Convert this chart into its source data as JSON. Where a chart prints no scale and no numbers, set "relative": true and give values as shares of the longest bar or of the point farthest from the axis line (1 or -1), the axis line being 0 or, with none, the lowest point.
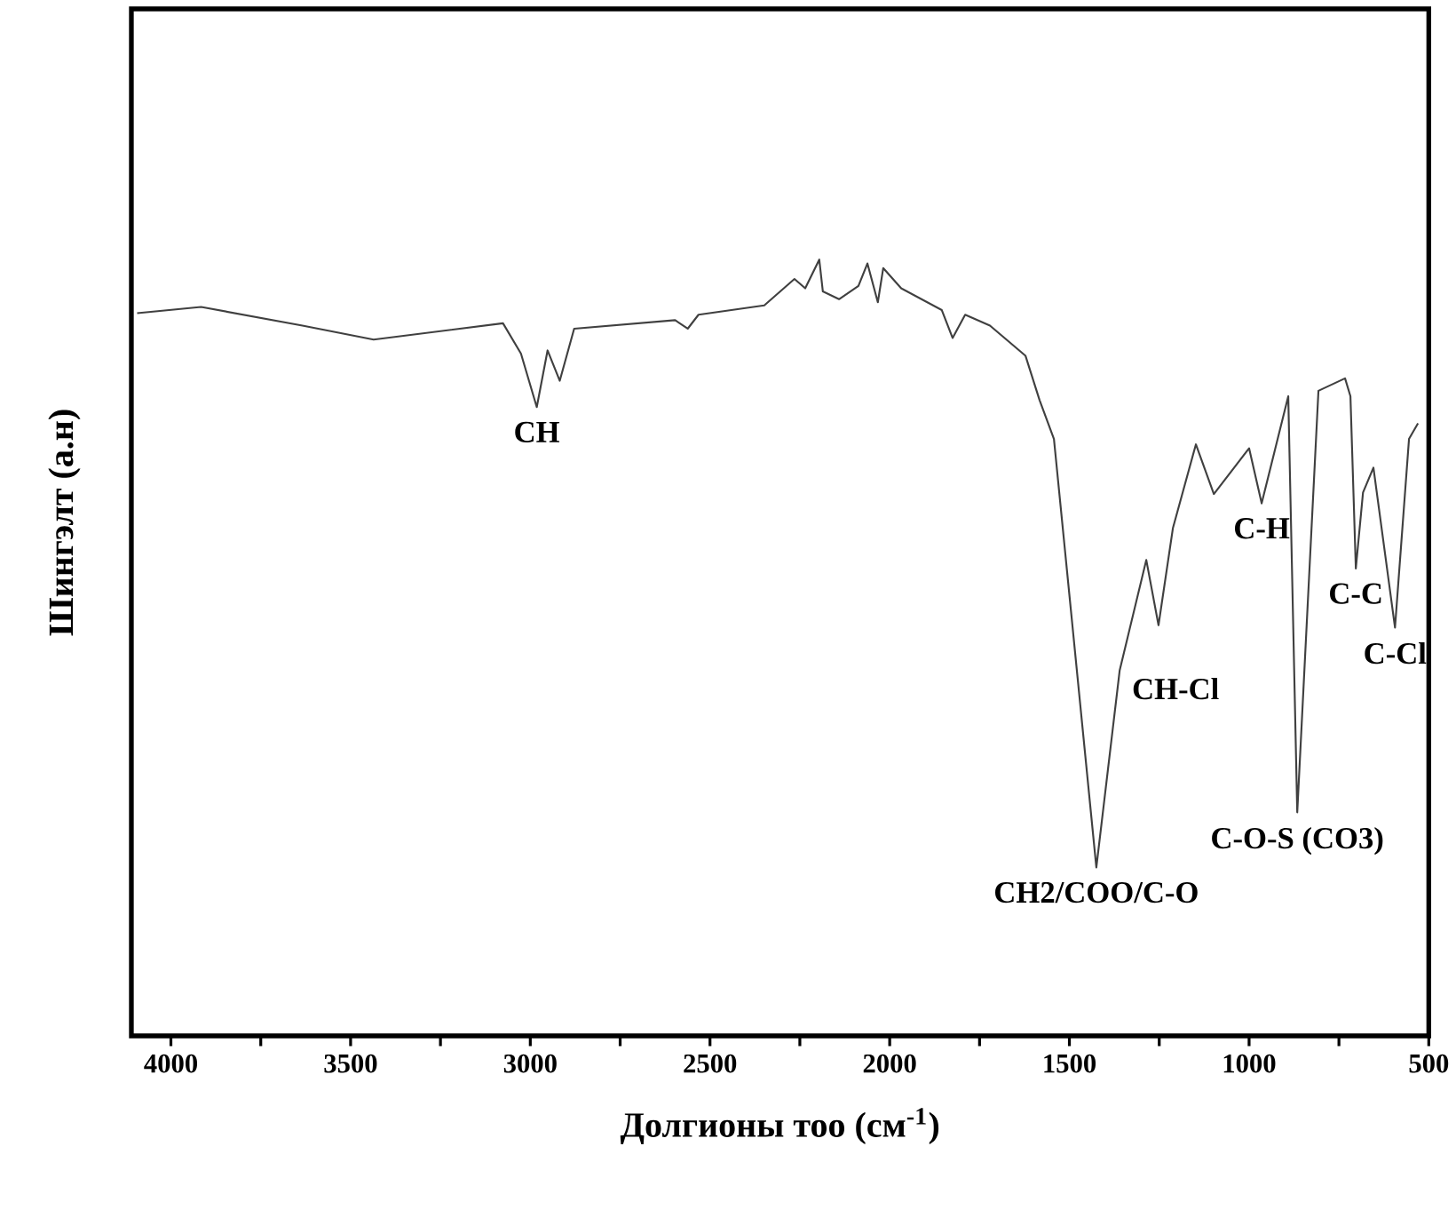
{
  "chart_data": {
    "type": "line",
    "relative": true,
    "xlabel": "Долгионы тоо (см$^{-1}$)",
    "ylabel": "Шингэлт (а.н)",
    "xlim": [
      4110,
      500
    ],
    "xticks": [
      4000,
      {
        "value": 3750,
        "label": null
      },
      3500,
      {
        "value": 3250,
        "label": null
      },
      3000,
      {
        "value": 2750,
        "label": null
      },
      2500,
      {
        "value": 2250,
        "label": null
      },
      2000,
      {
        "value": 1750,
        "label": null
      },
      1500,
      {
        "value": 1250,
        "label": null
      },
      1000,
      {
        "value": 750,
        "label": null
      },
      500
    ],
    "tick_labels": "x",
    "grid": false,
    "marker": "none",
    "line_style": "solid",
    "x": [
      4094,
      3916,
      3634,
      3436,
      3076,
      3026,
      2982,
      2952,
      2918,
      2878,
      2597,
      2562,
      2532,
      2349,
      2265,
      2235,
      2196,
      2186,
      2141,
      2087,
      2062,
      2033,
      2018,
      1968,
      1855,
      1825,
      1790,
      1721,
      1622,
      1583,
      1543,
      1494,
      1425,
      1360,
      1286,
      1252,
      1212,
      1148,
      1098,
      1000,
      965,
      891,
      866,
      807,
      733,
      718,
      703,
      683,
      654,
      594,
      555,
      530
    ],
    "series": [
      {
        "color": "#404040",
        "values": [
          0.931,
          0.939,
          0.915,
          0.897,
          0.918,
          0.879,
          0.81,
          0.883,
          0.844,
          0.911,
          0.922,
          0.911,
          0.929,
          0.941,
          0.975,
          0.963,
          1.0,
          0.959,
          0.949,
          0.966,
          0.995,
          0.945,
          0.989,
          0.963,
          0.935,
          0.899,
          0.929,
          0.915,
          0.876,
          0.819,
          0.769,
          0.54,
          0.217,
          0.471,
          0.613,
          0.529,
          0.654,
          0.762,
          0.698,
          0.757,
          0.686,
          0.824,
          0.288,
          0.831,
          0.847,
          0.824,
          0.602,
          0.7,
          0.732,
          0.526,
          0.769,
          0.789
        ]
      }
    ],
    "annotations": [
      {
        "text": "CH",
        "x": 2982,
        "y": 0.81
      },
      {
        "text": "CH2/COO/C-O",
        "x": 1425,
        "y": 0.217
      },
      {
        "text": "CH-Cl",
        "x": 1360,
        "y": 0.471
      },
      {
        "text": "C-H",
        "x": 965,
        "y": 0.686
      },
      {
        "text": "C-O-S (CO3)",
        "x": 866,
        "y": 0.288
      },
      {
        "text": "C-C",
        "x": 703,
        "y": 0.602
      },
      {
        "text": "C-Cl",
        "x": 594,
        "y": 0.526
      }
    ]
  }
}
